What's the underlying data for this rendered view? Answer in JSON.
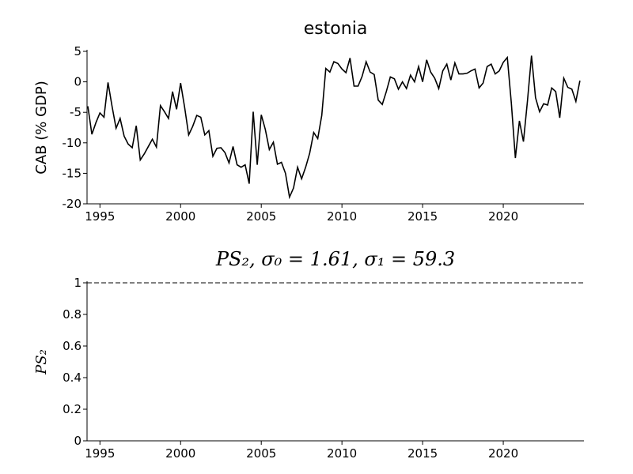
{
  "chart_data": [
    {
      "type": "line",
      "title": "estonia",
      "ylabel": "CAB (% GDP)",
      "color": "#000000",
      "xlim": [
        1994.2,
        2025.0
      ],
      "xticks": [
        1995,
        2000,
        2005,
        2010,
        2015,
        2020
      ],
      "ylim": [
        -20,
        5
      ],
      "yticks": [
        5,
        0,
        -5,
        -10,
        -15,
        -20
      ],
      "x": [
        1994.25,
        1994.5,
        1994.75,
        1995,
        1995.25,
        1995.5,
        1995.75,
        1996,
        1996.25,
        1996.5,
        1996.75,
        1997,
        1997.25,
        1997.5,
        1997.75,
        1998,
        1998.25,
        1998.5,
        1998.75,
        1999,
        1999.25,
        1999.5,
        1999.75,
        2000,
        2000.25,
        2000.5,
        2000.75,
        2001,
        2001.25,
        2001.5,
        2001.75,
        2002,
        2002.25,
        2002.5,
        2002.75,
        2003,
        2003.25,
        2003.5,
        2003.75,
        2004,
        2004.25,
        2004.5,
        2004.75,
        2005,
        2005.25,
        2005.5,
        2005.75,
        2006,
        2006.25,
        2006.5,
        2006.75,
        2007,
        2007.25,
        2007.5,
        2007.75,
        2008,
        2008.25,
        2008.5,
        2008.75,
        2009,
        2009.25,
        2009.5,
        2009.75,
        2010,
        2010.25,
        2010.5,
        2010.75,
        2011,
        2011.25,
        2011.5,
        2011.75,
        2012,
        2012.25,
        2012.5,
        2012.75,
        2013,
        2013.25,
        2013.5,
        2013.75,
        2014,
        2014.25,
        2014.5,
        2014.75,
        2015,
        2015.25,
        2015.5,
        2015.75,
        2016,
        2016.25,
        2016.5,
        2016.75,
        2017,
        2017.25,
        2017.5,
        2017.75,
        2018,
        2018.25,
        2018.5,
        2018.75,
        2019,
        2019.25,
        2019.5,
        2019.75,
        2020,
        2020.25,
        2020.5,
        2020.75,
        2021,
        2021.25,
        2021.5,
        2021.75,
        2022,
        2022.25,
        2022.5,
        2022.75,
        2023,
        2023.25,
        2023.5,
        2023.75,
        2024,
        2024.25,
        2024.5,
        2024.75
      ],
      "values": [
        -4,
        -8.6,
        -6.7,
        -5.1,
        -5.8,
        -0.1,
        -4,
        -7.6,
        -6,
        -8.9,
        -10.2,
        -10.8,
        -7.2,
        -12.8,
        -11.8,
        -10.6,
        -9.4,
        -10.7,
        -3.9,
        -4.9,
        -6,
        -1.6,
        -4.5,
        -0.2,
        -4.2,
        -8.7,
        -7.3,
        -5.5,
        -5.8,
        -8.7,
        -8,
        -12.2,
        -10.9,
        -10.8,
        -11.6,
        -13.3,
        -10.6,
        -13.6,
        -14,
        -13.6,
        -16.7,
        -4.9,
        -13.6,
        -5.4,
        -7.8,
        -11.1,
        -9.9,
        -13.5,
        -13.2,
        -15,
        -18.9,
        -17.4,
        -14,
        -15.9,
        -14,
        -11.7,
        -8.3,
        -9.3,
        -5.5,
        2.2,
        1.6,
        3.3,
        3,
        2.1,
        1.5,
        3.9,
        -0.7,
        -0.7,
        0.9,
        3.3,
        1.6,
        1.2,
        -3,
        -3.7,
        -1.6,
        0.8,
        0.5,
        -1.2,
        0,
        -1.1,
        1.1,
        0,
        2.5,
        0,
        3.6,
        1.6,
        0.6,
        -1.1,
        1.8,
        2.9,
        0.3,
        3.1,
        1.3,
        1.3,
        1.4,
        1.8,
        2.1,
        -1,
        -0.2,
        2.5,
        2.9,
        1.3,
        1.8,
        3.2,
        4,
        -3.5,
        -12.5,
        -6.4,
        -9.8,
        -3.1,
        4.3,
        -2.6,
        -4.9,
        -3.6,
        -3.8,
        -1,
        -1.6,
        -5.9,
        0.6,
        -0.9,
        -1.2,
        -3.2,
        0.2
      ]
    },
    {
      "type": "line",
      "title": "PS₂, σ₀ = 1.61, σ₁ = 59.3",
      "ylabel": "PS₂",
      "color": "#000000",
      "xlim": [
        1994.2,
        2025.0
      ],
      "xticks": [
        1995,
        2000,
        2005,
        2010,
        2015,
        2020
      ],
      "ylim": [
        0,
        1
      ],
      "yticks": [
        0,
        0.2,
        0.4,
        0.6,
        0.8,
        1
      ],
      "hlines": [
        1
      ],
      "hline_style": "dashed"
    }
  ]
}
